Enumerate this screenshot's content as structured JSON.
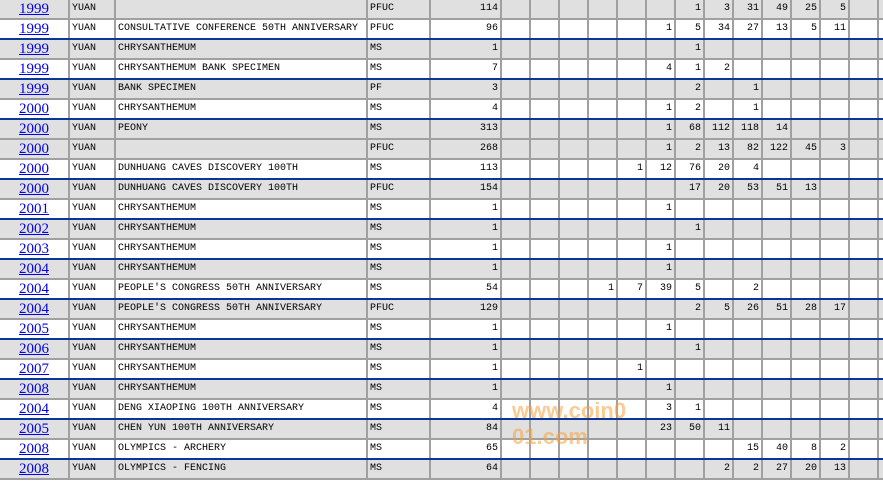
{
  "table": {
    "num_columns": 13,
    "rows": [
      {
        "year": "1999",
        "denom": "YUAN",
        "desc": "",
        "type": "PFUC",
        "total": "114",
        "grades": {
          "6": "1",
          "7": "3",
          "8": "31",
          "9": "49",
          "10": "25",
          "11": "5"
        }
      },
      {
        "year": "1999",
        "denom": "YUAN",
        "desc": "CONSULTATIVE CONFERENCE 50TH ANNIVERSARY",
        "type": "PFUC",
        "total": "96",
        "grades": {
          "5": "1",
          "6": "5",
          "7": "34",
          "8": "27",
          "9": "13",
          "10": "5",
          "11": "11"
        }
      },
      {
        "year": "1999",
        "denom": "YUAN",
        "desc": "CHRYSANTHEMUM",
        "type": "MS",
        "total": "1",
        "grades": {
          "6": "1"
        }
      },
      {
        "year": "1999",
        "denom": "YUAN",
        "desc": "CHRYSANTHEMUM BANK SPECIMEN",
        "type": "MS",
        "total": "7",
        "grades": {
          "5": "4",
          "6": "1",
          "7": "2"
        }
      },
      {
        "year": "1999",
        "denom": "YUAN",
        "desc": "BANK SPECIMEN",
        "type": "PF",
        "total": "3",
        "grades": {
          "6": "2",
          "8": "1"
        }
      },
      {
        "year": "2000",
        "denom": "YUAN",
        "desc": "CHRYSANTHEMUM",
        "type": "MS",
        "total": "4",
        "grades": {
          "5": "1",
          "6": "2",
          "8": "1"
        }
      },
      {
        "year": "2000",
        "denom": "YUAN",
        "desc": "PEONY",
        "type": "MS",
        "total": "313",
        "grades": {
          "5": "1",
          "6": "68",
          "7": "112",
          "8": "118",
          "9": "14"
        }
      },
      {
        "year": "2000",
        "denom": "YUAN",
        "desc": "",
        "type": "PFUC",
        "total": "268",
        "grades": {
          "5": "1",
          "6": "2",
          "7": "13",
          "8": "82",
          "9": "122",
          "10": "45",
          "11": "3"
        }
      },
      {
        "year": "2000",
        "denom": "YUAN",
        "desc": "DUNHUANG CAVES DISCOVERY 100TH",
        "type": "MS",
        "total": "113",
        "grades": {
          "4": "1",
          "5": "12",
          "6": "76",
          "7": "20",
          "8": "4"
        }
      },
      {
        "year": "2000",
        "denom": "YUAN",
        "desc": "DUNHUANG CAVES DISCOVERY 100TH",
        "type": "PFUC",
        "total": "154",
        "grades": {
          "6": "17",
          "7": "20",
          "8": "53",
          "9": "51",
          "10": "13"
        }
      },
      {
        "year": "2001",
        "denom": "YUAN",
        "desc": "CHRYSANTHEMUM",
        "type": "MS",
        "total": "1",
        "grades": {
          "5": "1"
        }
      },
      {
        "year": "2002",
        "denom": "YUAN",
        "desc": "CHRYSANTHEMUM",
        "type": "MS",
        "total": "1",
        "grades": {
          "6": "1"
        }
      },
      {
        "year": "2003",
        "denom": "YUAN",
        "desc": "CHRYSANTHEMUM",
        "type": "MS",
        "total": "1",
        "grades": {
          "5": "1"
        }
      },
      {
        "year": "2004",
        "denom": "YUAN",
        "desc": "CHRYSANTHEMUM",
        "type": "MS",
        "total": "1",
        "grades": {
          "5": "1"
        }
      },
      {
        "year": "2004",
        "denom": "YUAN",
        "desc": "PEOPLE'S CONGRESS 50TH ANNIVERSARY",
        "type": "MS",
        "total": "54",
        "grades": {
          "3": "1",
          "4": "7",
          "5": "39",
          "6": "5",
          "8": "2"
        }
      },
      {
        "year": "2004",
        "denom": "YUAN",
        "desc": "PEOPLE'S CONGRESS 50TH ANNIVERSARY",
        "type": "PFUC",
        "total": "129",
        "grades": {
          "6": "2",
          "7": "5",
          "8": "26",
          "9": "51",
          "10": "28",
          "11": "17"
        }
      },
      {
        "year": "2005",
        "denom": "YUAN",
        "desc": "CHRYSANTHEMUM",
        "type": "MS",
        "total": "1",
        "grades": {
          "5": "1"
        }
      },
      {
        "year": "2006",
        "denom": "YUAN",
        "desc": "CHRYSANTHEMUM",
        "type": "MS",
        "total": "1",
        "grades": {
          "6": "1"
        }
      },
      {
        "year": "2007",
        "denom": "YUAN",
        "desc": "CHRYSANTHEMUM",
        "type": "MS",
        "total": "1",
        "grades": {
          "4": "1"
        }
      },
      {
        "year": "2008",
        "denom": "YUAN",
        "desc": "CHRYSANTHEMUM",
        "type": "MS",
        "total": "1",
        "grades": {
          "5": "1"
        }
      },
      {
        "year": "2004",
        "denom": "YUAN",
        "desc": "DENG XIAOPING 100TH ANNIVERSARY",
        "type": "MS",
        "total": "4",
        "grades": {
          "5": "3",
          "6": "1"
        }
      },
      {
        "year": "2005",
        "denom": "YUAN",
        "desc": "CHEN YUN 100TH ANNIVERSARY",
        "type": "MS",
        "total": "84",
        "grades": {
          "5": "23",
          "6": "50",
          "7": "11"
        }
      },
      {
        "year": "2008",
        "denom": "YUAN",
        "desc": "OLYMPICS - ARCHERY",
        "type": "MS",
        "total": "65",
        "grades": {
          "8": "15",
          "9": "40",
          "10": "8",
          "11": "2"
        }
      },
      {
        "year": "2008",
        "denom": "YUAN",
        "desc": "OLYMPICS - FENCING",
        "type": "MS",
        "total": "64",
        "grades": {
          "7": "2",
          "8": "2",
          "9": "27",
          "10": "20",
          "11": "13"
        }
      }
    ]
  },
  "colors": {
    "link": "#0000ee",
    "row_shade": "#e0e0e0",
    "separator": "#0a3796",
    "grid": "#a0a0a0"
  },
  "watermark": "www.coin001.com"
}
